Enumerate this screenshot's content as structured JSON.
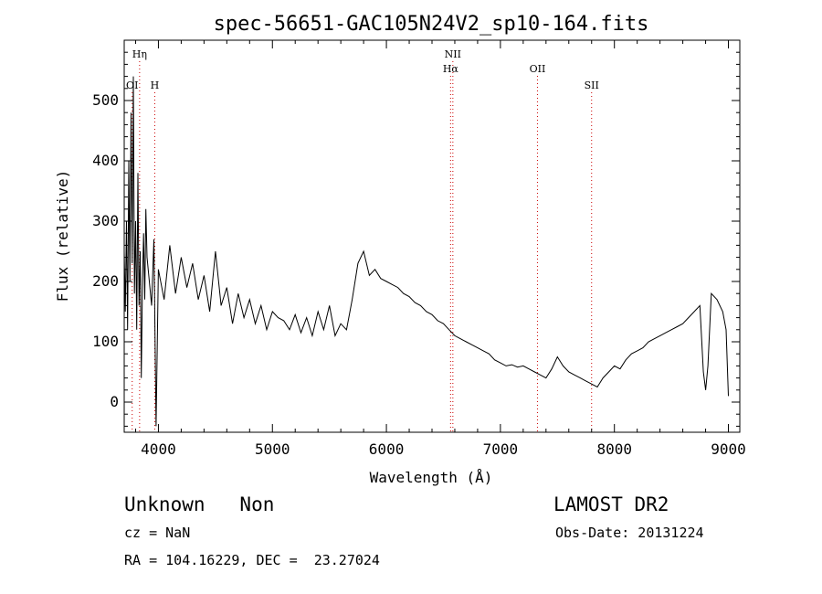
{
  "chart_data": {
    "type": "line",
    "title": "spec-56651-GAC105N24V2_sp10-164.fits",
    "xlabel": "Wavelength (Å)",
    "ylabel": "Flux (relative)",
    "xlim": [
      3700,
      9100
    ],
    "ylim": [
      -50,
      600
    ],
    "xticks": [
      4000,
      5000,
      6000,
      7000,
      8000,
      9000
    ],
    "yticks": [
      0,
      100,
      200,
      300,
      400,
      500
    ],
    "line_color": "#000000",
    "marker_color": "#cc0000",
    "lines": [
      {
        "label": "OI",
        "x": 3770,
        "row": 3
      },
      {
        "label": "Hη",
        "x": 3835,
        "row": 1
      },
      {
        "label": "H",
        "x": 3968,
        "row": 3
      },
      {
        "label": "NII",
        "x": 6583,
        "row": 1
      },
      {
        "label": "Hα",
        "x": 6563,
        "row": 2
      },
      {
        "label": "OII",
        "x": 7325,
        "row": 2
      },
      {
        "label": "SII",
        "x": 7800,
        "row": 3
      }
    ],
    "series": [
      {
        "x": [
          3700,
          3710,
          3720,
          3730,
          3740,
          3750,
          3760,
          3770,
          3780,
          3790,
          3800,
          3810,
          3820,
          3830,
          3840,
          3850,
          3860,
          3870,
          3880,
          3890,
          3900,
          3920,
          3940,
          3960,
          3980,
          4000,
          4050,
          4100,
          4150,
          4200,
          4250,
          4300,
          4350,
          4400,
          4450,
          4500,
          4550,
          4600,
          4650,
          4700,
          4750,
          4800,
          4850,
          4900,
          4950,
          5000,
          5050,
          5100,
          5150,
          5200,
          5250,
          5300,
          5350,
          5400,
          5450,
          5500,
          5550,
          5600,
          5650,
          5700,
          5750,
          5800,
          5850,
          5900,
          5950,
          6000,
          6050,
          6100,
          6150,
          6200,
          6250,
          6300,
          6350,
          6400,
          6450,
          6500,
          6550,
          6600,
          6650,
          6700,
          6750,
          6800,
          6850,
          6900,
          6950,
          7000,
          7050,
          7100,
          7150,
          7200,
          7250,
          7300,
          7350,
          7400,
          7450,
          7500,
          7550,
          7600,
          7650,
          7700,
          7750,
          7800,
          7850,
          7900,
          7950,
          8000,
          8050,
          8100,
          8150,
          8200,
          8250,
          8300,
          8350,
          8400,
          8450,
          8500,
          8550,
          8600,
          8650,
          8700,
          8750,
          8780,
          8800,
          8820,
          8850,
          8900,
          8950,
          8980,
          9000
        ],
        "y": [
          250,
          150,
          300,
          120,
          400,
          200,
          480,
          230,
          540,
          180,
          300,
          120,
          380,
          160,
          250,
          40,
          200,
          280,
          170,
          320,
          240,
          200,
          160,
          270,
          -40,
          220,
          170,
          260,
          180,
          240,
          190,
          230,
          170,
          210,
          150,
          250,
          160,
          190,
          130,
          180,
          140,
          170,
          130,
          160,
          120,
          150,
          140,
          135,
          120,
          145,
          115,
          140,
          110,
          150,
          120,
          160,
          110,
          130,
          120,
          170,
          230,
          250,
          210,
          220,
          205,
          200,
          195,
          190,
          180,
          175,
          165,
          160,
          150,
          145,
          135,
          130,
          120,
          110,
          105,
          100,
          95,
          90,
          85,
          80,
          70,
          65,
          60,
          62,
          58,
          60,
          55,
          50,
          45,
          40,
          55,
          75,
          60,
          50,
          45,
          40,
          35,
          30,
          25,
          40,
          50,
          60,
          55,
          70,
          80,
          85,
          90,
          100,
          105,
          110,
          115,
          120,
          125,
          130,
          140,
          150,
          160,
          50,
          20,
          60,
          180,
          170,
          150,
          120,
          10
        ]
      }
    ]
  },
  "info": {
    "class_text": "Unknown   Non",
    "survey": "LAMOST DR2",
    "cz": "cz = NaN",
    "obs_date": "Obs-Date: 20131224",
    "coords": "RA = 104.16229, DEC =  23.27024"
  }
}
